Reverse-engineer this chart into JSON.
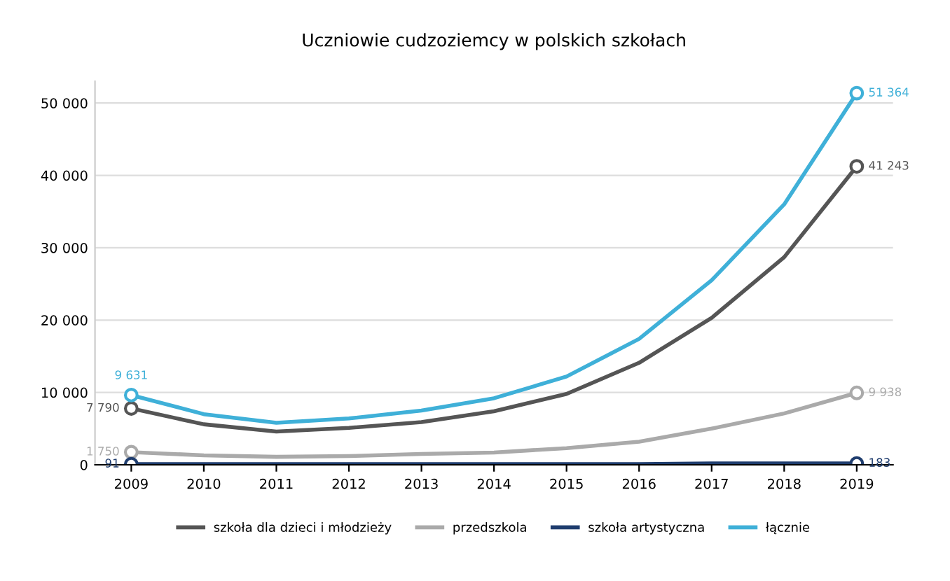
{
  "chart_data": {
    "type": "line",
    "title": "Uczniowie cudzoziemcy w polskich szkołach",
    "categories": [
      "2009",
      "2010",
      "2011",
      "2012",
      "2013",
      "2014",
      "2015",
      "2016",
      "2017",
      "2018",
      "2019"
    ],
    "series": [
      {
        "name": "szkoła dla dzieci i młodzieży",
        "color": "#555555",
        "values": [
          7790,
          5600,
          4600,
          5100,
          5900,
          7400,
          9800,
          14100,
          20300,
          28700,
          41243
        ],
        "value_labels": [
          "7 790",
          null,
          null,
          null,
          null,
          null,
          null,
          null,
          null,
          null,
          "41 243"
        ]
      },
      {
        "name": "przedszkola",
        "color": "#aaaaaa",
        "values": [
          1750,
          1300,
          1100,
          1200,
          1500,
          1700,
          2300,
          3200,
          5000,
          7100,
          9938
        ],
        "value_labels": [
          "1 750",
          null,
          null,
          null,
          null,
          null,
          null,
          null,
          null,
          null,
          "9 938"
        ]
      },
      {
        "name": "szkoła artystyczna",
        "color": "#1f3d6e",
        "values": [
          91,
          100,
          100,
          100,
          100,
          100,
          100,
          100,
          200,
          200,
          183
        ],
        "value_labels": [
          "91",
          null,
          null,
          null,
          null,
          null,
          null,
          null,
          null,
          null,
          "183"
        ]
      },
      {
        "name": "łącznie",
        "color": "#3fb0d8",
        "values": [
          9631,
          7000,
          5800,
          6400,
          7500,
          9200,
          12200,
          17400,
          25500,
          36000,
          51364
        ],
        "value_labels": [
          "9 631",
          null,
          null,
          null,
          null,
          null,
          null,
          null,
          null,
          null,
          "51 364"
        ]
      }
    ],
    "ylim": [
      0,
      53000
    ],
    "yticks": [
      {
        "value": 0,
        "label": "0"
      },
      {
        "value": 10000,
        "label": "10 000"
      },
      {
        "value": 20000,
        "label": "20 000"
      },
      {
        "value": 30000,
        "label": "30 000"
      },
      {
        "value": 40000,
        "label": "40 000"
      },
      {
        "value": 50000,
        "label": "50 000"
      }
    ],
    "grid": "y",
    "legend": "bottom"
  }
}
